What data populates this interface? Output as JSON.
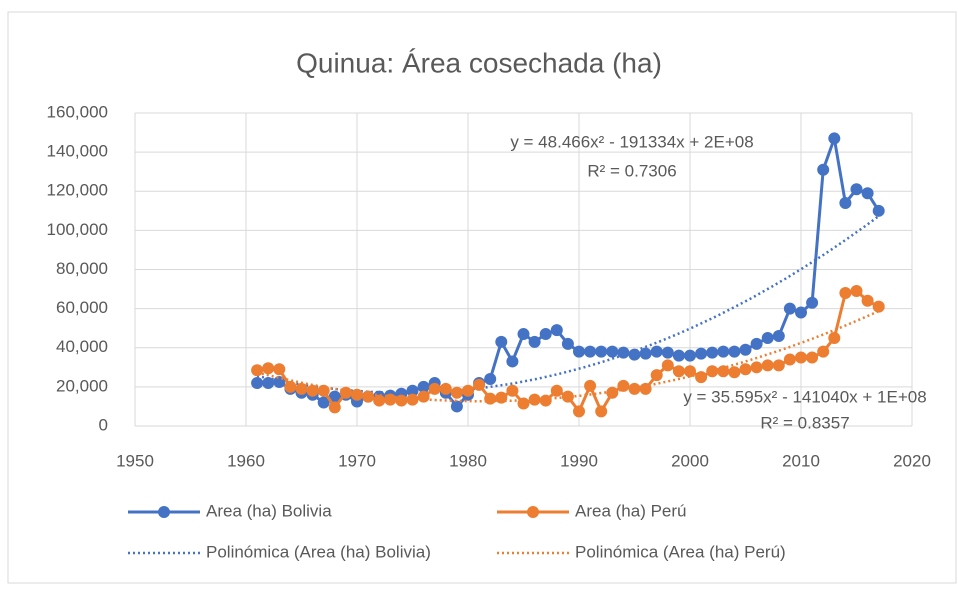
{
  "chart_data": {
    "type": "scatter",
    "title": "Quinua: Área cosechada (ha)",
    "x": [
      1961,
      1962,
      1963,
      1964,
      1965,
      1966,
      1967,
      1968,
      1969,
      1970,
      1971,
      1972,
      1973,
      1974,
      1975,
      1976,
      1977,
      1978,
      1979,
      1980,
      1981,
      1982,
      1983,
      1984,
      1985,
      1986,
      1987,
      1988,
      1989,
      1990,
      1991,
      1992,
      1993,
      1994,
      1995,
      1996,
      1997,
      1998,
      1999,
      2000,
      2001,
      2002,
      2003,
      2004,
      2005,
      2006,
      2007,
      2008,
      2009,
      2010,
      2011,
      2012,
      2013,
      2014,
      2015,
      2016,
      2017
    ],
    "series": [
      {
        "name": "Area (ha) Bolivia",
        "color": "#4472c4",
        "values": [
          22000,
          22000,
          22500,
          19000,
          17000,
          16000,
          12000,
          15000,
          16000,
          12500,
          15000,
          15000,
          15500,
          16500,
          18000,
          20000,
          22000,
          17000,
          10000,
          16000,
          22000,
          24000,
          43000,
          33000,
          47000,
          43000,
          47000,
          49000,
          42000,
          38000,
          38000,
          38000,
          38000,
          37500,
          36500,
          37000,
          38000,
          37500,
          36000,
          36000,
          37000,
          37500,
          38000,
          38000,
          39000,
          42000,
          45000,
          46000,
          60000,
          58000,
          63000,
          131000,
          147000,
          114000,
          121000,
          119000,
          110000
        ],
        "trendline": {
          "name": "Polinómica (Area (ha) Bolivia)",
          "order": 2,
          "equation": "y = 48.466x² - 191334x + 2E+08",
          "r_squared": "R² = 0.7306"
        }
      },
      {
        "name": "Area (ha) Perú",
        "color": "#ed7d31",
        "values": [
          28500,
          29500,
          29000,
          20000,
          19000,
          18000,
          18000,
          9500,
          17000,
          16000,
          15000,
          13000,
          13500,
          13000,
          13500,
          15000,
          19000,
          19000,
          17000,
          18000,
          21000,
          14000,
          14500,
          18000,
          11500,
          13500,
          13000,
          18000,
          15000,
          7500,
          20500,
          7500,
          17000,
          20500,
          19000,
          19000,
          26000,
          31000,
          28000,
          28000,
          25000,
          28000,
          28000,
          27500,
          29000,
          30000,
          31000,
          31000,
          34000,
          35000,
          35000,
          38000,
          45000,
          68000,
          69000,
          64000,
          61000
        ],
        "trendline": {
          "name": "Polinómica (Area (ha) Perú)",
          "order": 2,
          "equation": "y = 35.595x² - 141040x + 1E+08",
          "r_squared": "R² = 0.8357"
        }
      }
    ],
    "xlim": [
      1950,
      2020
    ],
    "xticks": [
      1950,
      1960,
      1970,
      1980,
      1990,
      2000,
      2010,
      2020
    ],
    "ylim": [
      0,
      160000
    ],
    "yticks": [
      0,
      {
        "value": 20000,
        "label": "20,000"
      },
      {
        "value": 40000,
        "label": "40,000"
      },
      {
        "value": 60000,
        "label": "60,000"
      },
      {
        "value": 80000,
        "label": "80,000"
      },
      {
        "value": 100000,
        "label": "100,000"
      },
      {
        "value": 120000,
        "label": "120,000"
      },
      {
        "value": 140000,
        "label": "140,000"
      },
      {
        "value": 160000,
        "label": "160,000"
      }
    ],
    "grid": true,
    "legend": "bottom"
  }
}
